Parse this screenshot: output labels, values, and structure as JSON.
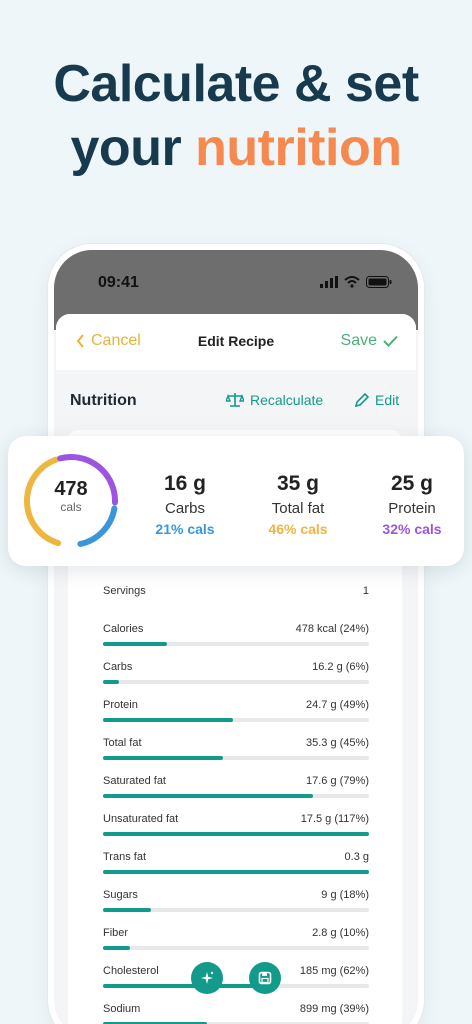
{
  "headline": {
    "line1": "Calculate & set",
    "line2_prefix": "your ",
    "line2_accent": "nutrition"
  },
  "colors": {
    "accent_orange": "#f6894f",
    "teal": "#129a8a",
    "carbs": "#3a96db",
    "fat": "#efb63f",
    "protein": "#9b55e0"
  },
  "status_bar": {
    "time": "09:41"
  },
  "nav": {
    "cancel": "Cancel",
    "title": "Edit Recipe",
    "save": "Save"
  },
  "section": {
    "title": "Nutrition",
    "recalculate": "Recalculate",
    "edit": "Edit"
  },
  "summary": {
    "calories": "478",
    "calories_label": "cals",
    "macros": [
      {
        "value": "16 g",
        "name": "Carbs",
        "pct": "21% cals"
      },
      {
        "value": "35 g",
        "name": "Total fat",
        "pct": "46% cals"
      },
      {
        "value": "25 g",
        "name": "Protein",
        "pct": "32% cals"
      }
    ]
  },
  "servings": {
    "label": "Servings",
    "value": "1"
  },
  "nutrients": [
    {
      "label": "Calories",
      "amount": "478 kcal (24%)",
      "fraction": 0.24
    },
    {
      "label": "Carbs",
      "amount": "16.2 g (6%)",
      "fraction": 0.06
    },
    {
      "label": "Protein",
      "amount": "24.7 g (49%)",
      "fraction": 0.49
    },
    {
      "label": "Total fat",
      "amount": "35.3 g (45%)",
      "fraction": 0.45
    },
    {
      "label": "Saturated fat",
      "amount": "17.6 g (79%)",
      "fraction": 0.79
    },
    {
      "label": "Unsaturated fat",
      "amount": "17.5 g (117%)",
      "fraction": 1.0
    },
    {
      "label": "Trans fat",
      "amount": "0.3 g",
      "fraction": 1.0
    },
    {
      "label": "Sugars",
      "amount": "9 g (18%)",
      "fraction": 0.18
    },
    {
      "label": "Fiber",
      "amount": "2.8 g (10%)",
      "fraction": 0.1
    },
    {
      "label": "Cholesterol",
      "amount": "185 mg (62%)",
      "fraction": 0.62
    },
    {
      "label": "Sodium",
      "amount": "899 mg (39%)",
      "fraction": 0.39
    }
  ],
  "icons": {
    "sparkle": "sparkle-icon",
    "save": "save-icon",
    "scale": "scale-icon",
    "pencil": "pencil-icon"
  }
}
